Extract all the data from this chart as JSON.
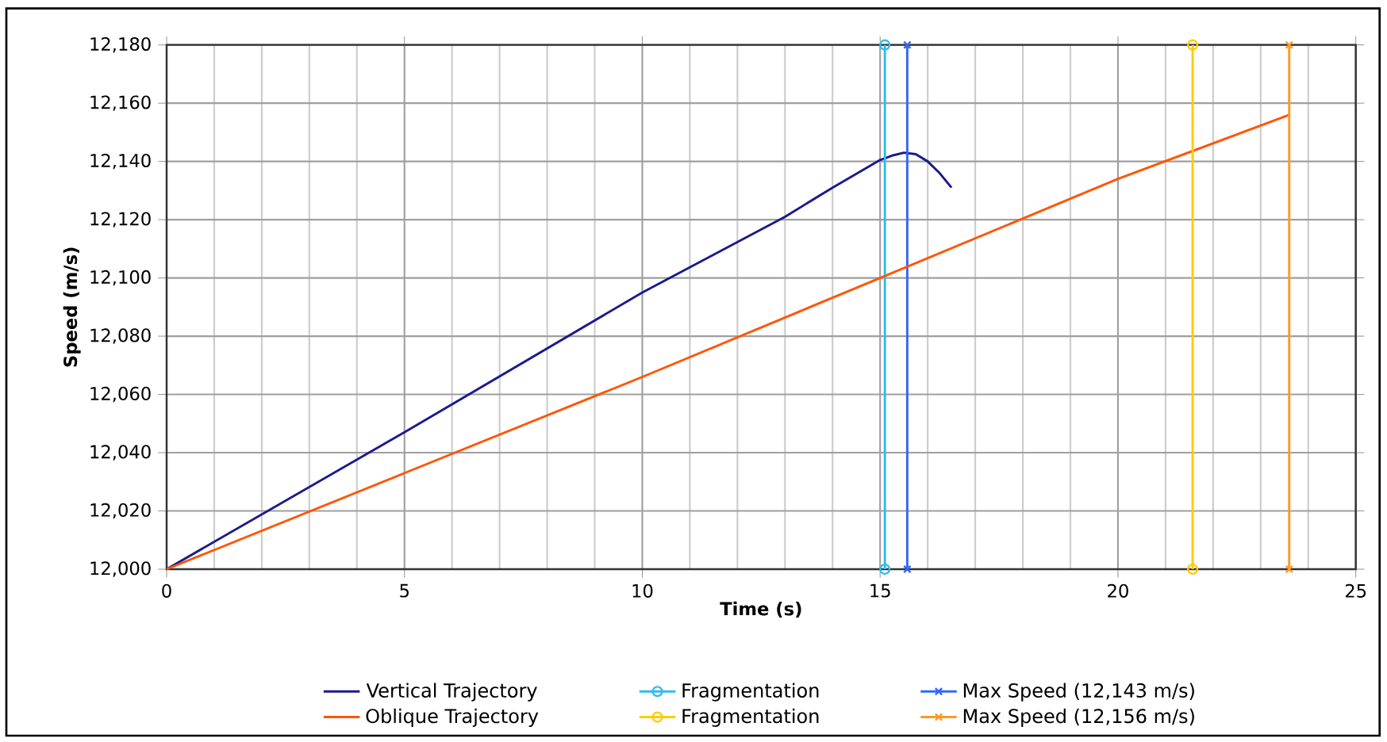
{
  "chart_data": {
    "type": "line",
    "xlabel": "Time (s)",
    "ylabel": "Speed (m/s)",
    "xlim": [
      0,
      25
    ],
    "xticks": [
      0,
      5,
      10,
      15,
      20,
      25
    ],
    "ylim": [
      12000,
      12180
    ],
    "yticks": [
      {
        "value": 12000,
        "label": "12,000"
      },
      {
        "value": 12020,
        "label": "12,020"
      },
      {
        "value": 12040,
        "label": "12,040"
      },
      {
        "value": 12060,
        "label": "12,060"
      },
      {
        "value": 12080,
        "label": "12,080"
      },
      {
        "value": 12100,
        "label": "12,100"
      },
      {
        "value": 12120,
        "label": "12,120"
      },
      {
        "value": 12140,
        "label": "12,140"
      },
      {
        "value": 12160,
        "label": "12,160"
      },
      {
        "value": 12180,
        "label": "12,180"
      }
    ],
    "grid": true,
    "legend": "bottom",
    "series": [
      {
        "name": "Vertical Trajectory",
        "color": "#1a1a8c",
        "marker": "none",
        "x": [
          0,
          5,
          10,
          13,
          14,
          15,
          15.25,
          15.5,
          15.75,
          16,
          16.25,
          16.5
        ],
        "values": [
          12000,
          12047,
          12095,
          12121,
          12131,
          12140.5,
          12142,
          12143,
          12142.5,
          12140,
          12136,
          12131
        ]
      },
      {
        "name": "Fragmentation",
        "color": "#33bbee",
        "marker": "circle",
        "x": [
          15.1,
          15.1
        ],
        "values": [
          12000,
          12180
        ]
      },
      {
        "name": "Max Speed (12,143 m/s)",
        "color": "#3366ff",
        "marker": "cross",
        "x": [
          15.57,
          15.57
        ],
        "values": [
          12000,
          12180
        ]
      },
      {
        "name": "Oblique Trajectory",
        "color": "#ff5500",
        "marker": "none",
        "x": [
          0,
          5,
          10,
          15,
          20,
          23.6
        ],
        "values": [
          12000,
          12033,
          12066,
          12100,
          12134,
          12156
        ]
      },
      {
        "name": "Fragmentation",
        "color": "#ffcc00",
        "marker": "circle",
        "x": [
          21.57,
          21.57
        ],
        "values": [
          12000,
          12180
        ]
      },
      {
        "name": "Max Speed (12,156 m/s)",
        "color": "#ff9922",
        "marker": "cross",
        "x": [
          23.6,
          23.6
        ],
        "values": [
          12000,
          12180
        ]
      }
    ]
  }
}
